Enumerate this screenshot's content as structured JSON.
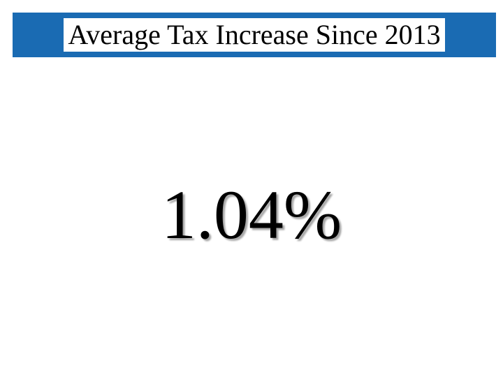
{
  "slide": {
    "title": "Average Tax Increase Since 2013",
    "value": "1.04%",
    "title_bar_color": "#1a6bb3",
    "title_text_bg": "#ffffff",
    "title_text_color": "#000000",
    "title_fontsize": 40,
    "value_color": "#000000",
    "value_fontsize": 100,
    "value_shadow": "3px 3px 2px rgba(0,0,0,0.35)",
    "background_color": "#ffffff",
    "font_family": "Times New Roman"
  }
}
